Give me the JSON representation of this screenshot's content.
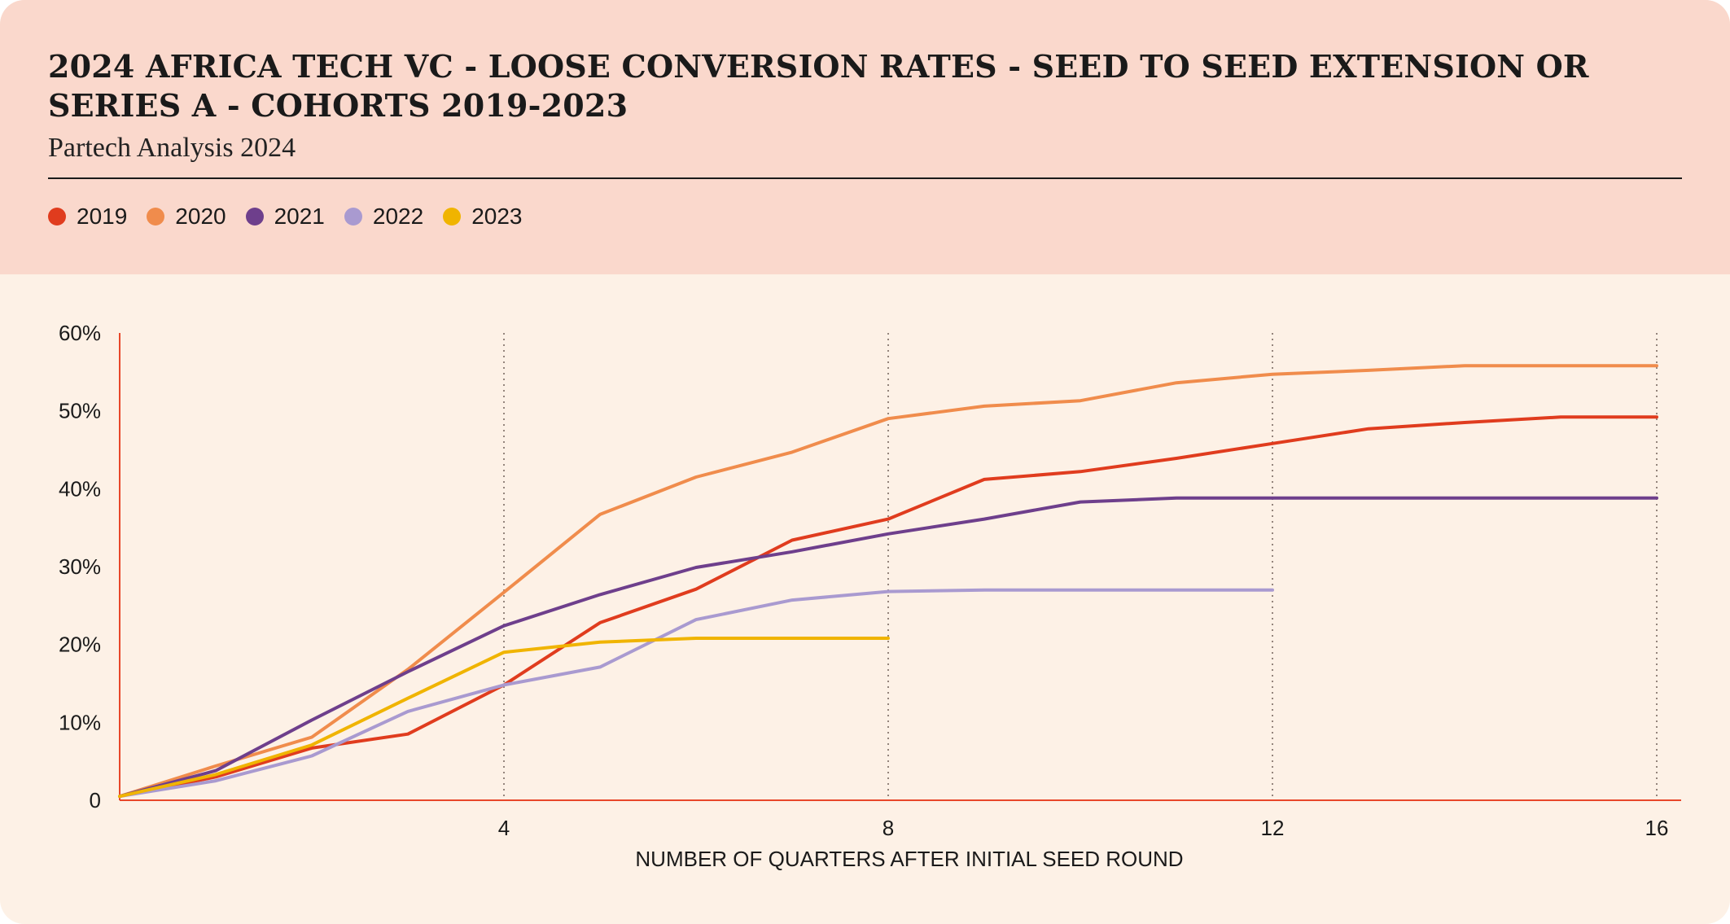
{
  "header": {
    "title": "2024 AFRICA TECH VC - LOOSE CONVERSION RATES -  SEED TO SEED EXTENSION OR SERIES A - COHORTS 2019-2023",
    "subtitle": "Partech Analysis 2024"
  },
  "colors": {
    "header_bg": "#fad8cc",
    "plot_bg": "#fdf1e6",
    "axis": "#e8472a",
    "grid": "#7a6a62"
  },
  "chart_data": {
    "type": "line",
    "title": "2024 AFRICA TECH VC - LOOSE CONVERSION RATES -  SEED TO SEED EXTENSION OR SERIES A - COHORTS 2019-2023",
    "subtitle": "Partech Analysis 2024",
    "xlabel": "NUMBER OF QUARTERS AFTER INITIAL SEED ROUND",
    "ylabel": "",
    "xlim": [
      0,
      16
    ],
    "ylim": [
      0,
      60
    ],
    "x_ticks": [
      4,
      8,
      12,
      16
    ],
    "x_tick_labels": [
      "4",
      "8",
      "12",
      "16"
    ],
    "y_ticks": [
      0,
      10,
      20,
      30,
      40,
      50,
      60
    ],
    "y_tick_labels": [
      "0",
      "10%",
      "20%",
      "30%",
      "40%",
      "50%",
      "60%"
    ],
    "grid": "vertical dotted at x ticks",
    "legend_position": "top-left",
    "series": [
      {
        "name": "2019",
        "color": "#e03c1e",
        "x": [
          0,
          1,
          2,
          3,
          4,
          5,
          6,
          7,
          8,
          9,
          10,
          11,
          12,
          13,
          14,
          15,
          16
        ],
        "values": [
          0.5,
          3,
          6.7,
          8.5,
          14.8,
          22.8,
          27.1,
          33.4,
          36.1,
          41.2,
          42.2,
          43.9,
          45.8,
          47.7,
          48.5,
          49.2,
          49.2
        ]
      },
      {
        "name": "2020",
        "color": "#f08c4c",
        "x": [
          0,
          1,
          2,
          3,
          4,
          5,
          6,
          7,
          8,
          9,
          10,
          11,
          12,
          13,
          14,
          15,
          16
        ],
        "values": [
          0.5,
          4.4,
          8.1,
          16.8,
          26.7,
          36.7,
          41.5,
          44.7,
          49.0,
          50.6,
          51.3,
          53.6,
          54.7,
          55.2,
          55.8,
          55.8,
          55.8
        ]
      },
      {
        "name": "2021",
        "color": "#6e3f8c",
        "x": [
          0,
          1,
          2,
          3,
          4,
          5,
          6,
          7,
          8,
          9,
          10,
          11,
          12,
          13,
          14,
          15,
          16
        ],
        "values": [
          0.5,
          3.8,
          10.3,
          16.5,
          22.4,
          26.4,
          29.9,
          31.9,
          34.2,
          36.1,
          38.3,
          38.8,
          38.8,
          38.8,
          38.8,
          38.8,
          38.8
        ]
      },
      {
        "name": "2022",
        "color": "#a99ad0",
        "x": [
          0,
          1,
          2,
          3,
          4,
          5,
          6,
          7,
          8,
          9,
          10,
          11,
          12
        ],
        "values": [
          0.5,
          2.5,
          5.7,
          11.4,
          14.8,
          17.1,
          23.2,
          25.7,
          26.8,
          27.0,
          27.0,
          27.0,
          27.0
        ]
      },
      {
        "name": "2023",
        "color": "#f0b400",
        "x": [
          0,
          1,
          2,
          3,
          4,
          5,
          6,
          7,
          8
        ],
        "values": [
          0.5,
          3.3,
          7.1,
          13.1,
          19.0,
          20.3,
          20.8,
          20.8,
          20.8
        ]
      }
    ]
  }
}
